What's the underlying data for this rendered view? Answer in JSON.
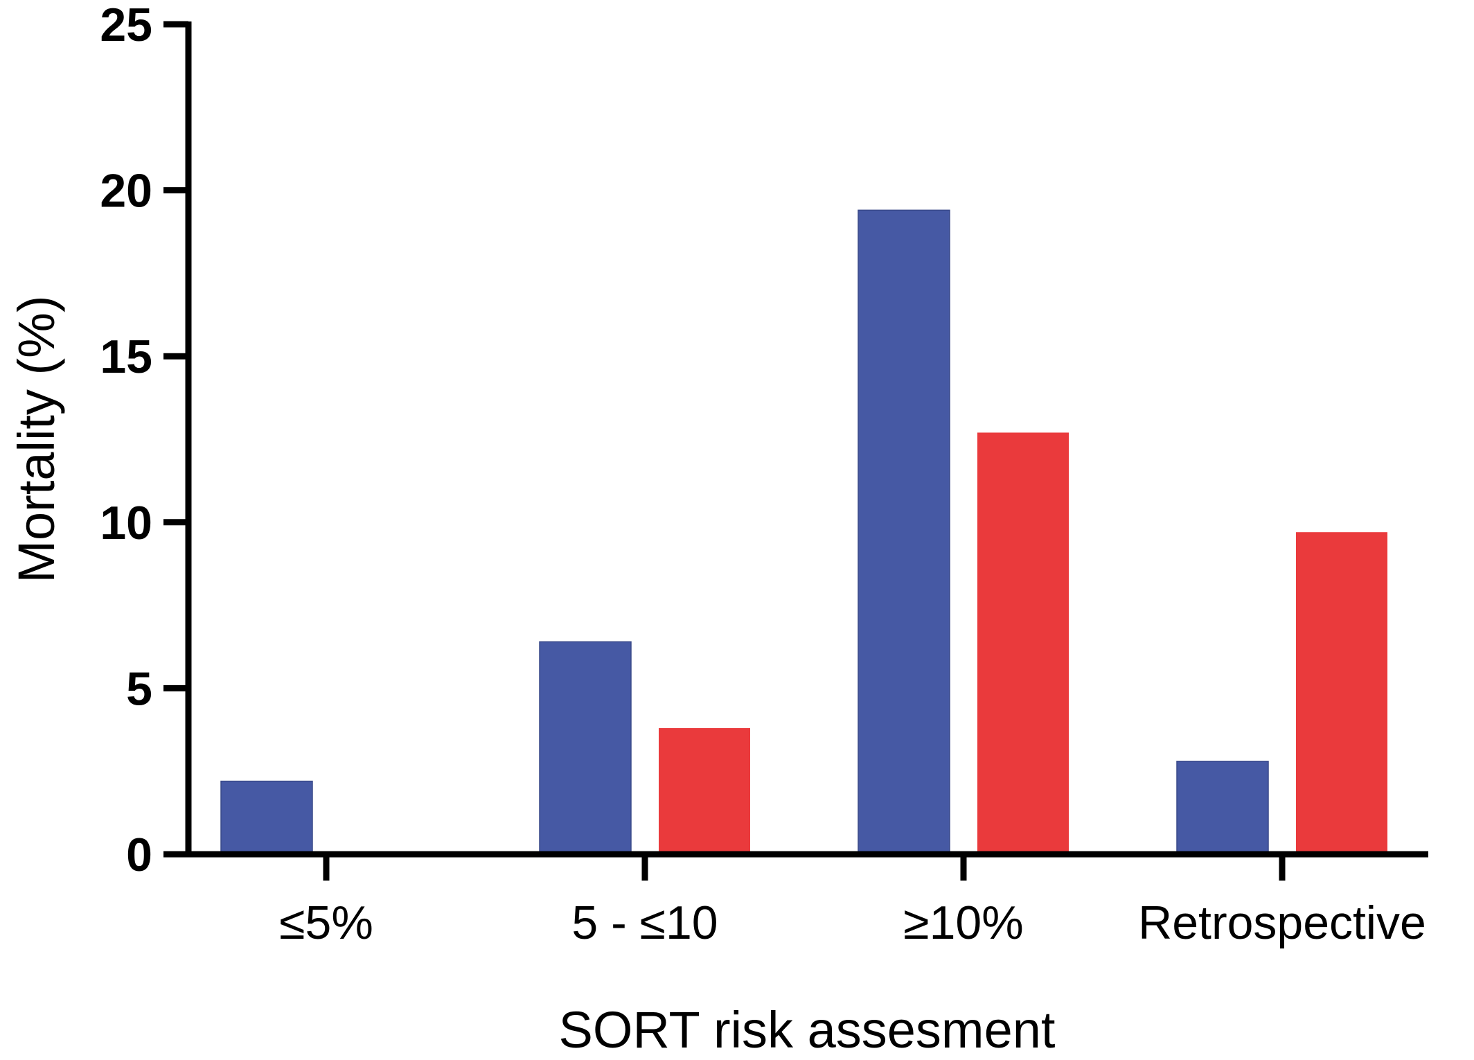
{
  "chart_data": {
    "type": "bar",
    "title": "",
    "xlabel": "SORT risk assesment",
    "ylabel": "Mortality (%)",
    "categories": [
      "≤5%",
      "5 - ≤10",
      "≥10%",
      "Retrospective"
    ],
    "series": [
      {
        "values": [
          2.2,
          6.4,
          19.4,
          2.8
        ],
        "color": "#4659a4"
      },
      {
        "values": [
          0,
          3.8,
          12.7,
          9.7
        ],
        "color": "#ea3a3c"
      }
    ],
    "ylim": [
      0,
      25
    ],
    "yticks": [
      "0",
      "5",
      "10",
      "15",
      "20",
      "25"
    ],
    "grid": false,
    "legend": "none"
  }
}
